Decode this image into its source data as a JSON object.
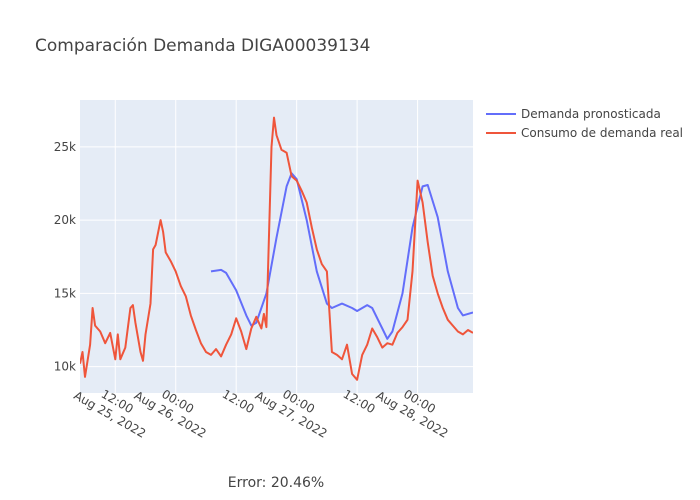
{
  "chart_data": {
    "type": "line",
    "title": "Comparación Demanda DIGA00039134",
    "annotation": "Error: 20.46%",
    "xlabel": "",
    "ylabel": "",
    "x_range": [
      "2022-08-25 05:00",
      "2022-08-28 11:00"
    ],
    "ylim": [
      8200,
      28200
    ],
    "y_ticks": [
      10000,
      15000,
      20000,
      25000
    ],
    "y_tick_labels": [
      "10k",
      "15k",
      "20k",
      "25k"
    ],
    "x_ticks": [
      {
        "t": "2022-08-25 12:00",
        "line1": "12:00",
        "line2": "Aug 25, 2022"
      },
      {
        "t": "2022-08-26 00:00",
        "line1": "00:00",
        "line2": "Aug 26, 2022"
      },
      {
        "t": "2022-08-26 12:00",
        "line1": "12:00",
        "line2": ""
      },
      {
        "t": "2022-08-27 00:00",
        "line1": "00:00",
        "line2": "Aug 27, 2022"
      },
      {
        "t": "2022-08-27 12:00",
        "line1": "12:00",
        "line2": ""
      },
      {
        "t": "2022-08-28 00:00",
        "line1": "00:00",
        "line2": "Aug 28, 2022"
      }
    ],
    "grid": true,
    "legend_position": "top-right",
    "series": [
      {
        "name": "Demanda pronosticada",
        "color": "#636efa",
        "points": [
          [
            "2022-08-26 07:00",
            16500
          ],
          [
            "2022-08-26 09:00",
            16600
          ],
          [
            "2022-08-26 10:00",
            16400
          ],
          [
            "2022-08-26 12:00",
            15200
          ],
          [
            "2022-08-26 14:00",
            13500
          ],
          [
            "2022-08-26 15:00",
            12800
          ],
          [
            "2022-08-26 16:00",
            13000
          ],
          [
            "2022-08-26 18:00",
            15000
          ],
          [
            "2022-08-26 20:00",
            18800
          ],
          [
            "2022-08-26 22:00",
            22300
          ],
          [
            "2022-08-26 23:00",
            23200
          ],
          [
            "2022-08-27 00:00",
            22800
          ],
          [
            "2022-08-27 02:00",
            20000
          ],
          [
            "2022-08-27 04:00",
            16500
          ],
          [
            "2022-08-27 06:00",
            14300
          ],
          [
            "2022-08-27 07:00",
            14000
          ],
          [
            "2022-08-27 09:00",
            14300
          ],
          [
            "2022-08-27 11:00",
            14000
          ],
          [
            "2022-08-27 12:00",
            13800
          ],
          [
            "2022-08-27 14:00",
            14200
          ],
          [
            "2022-08-27 15:00",
            14000
          ],
          [
            "2022-08-27 17:00",
            12600
          ],
          [
            "2022-08-27 18:00",
            11900
          ],
          [
            "2022-08-27 19:00",
            12400
          ],
          [
            "2022-08-27 21:00",
            15000
          ],
          [
            "2022-08-27 23:00",
            19500
          ],
          [
            "2022-08-28 01:00",
            22300
          ],
          [
            "2022-08-28 02:00",
            22400
          ],
          [
            "2022-08-28 04:00",
            20200
          ],
          [
            "2022-08-28 06:00",
            16500
          ],
          [
            "2022-08-28 08:00",
            14000
          ],
          [
            "2022-08-28 09:00",
            13500
          ],
          [
            "2022-08-28 11:00",
            13700
          ]
        ]
      },
      {
        "name": "Consumo de demanda real",
        "color": "#ef553b",
        "points": [
          [
            "2022-08-25 05:00",
            10200
          ],
          [
            "2022-08-25 05:30",
            11000
          ],
          [
            "2022-08-25 06:00",
            9300
          ],
          [
            "2022-08-25 07:00",
            11500
          ],
          [
            "2022-08-25 07:30",
            14000
          ],
          [
            "2022-08-25 08:00",
            12800
          ],
          [
            "2022-08-25 09:00",
            12400
          ],
          [
            "2022-08-25 10:00",
            11600
          ],
          [
            "2022-08-25 11:00",
            12300
          ],
          [
            "2022-08-25 12:00",
            10500
          ],
          [
            "2022-08-25 12:30",
            12200
          ],
          [
            "2022-08-25 13:00",
            10500
          ],
          [
            "2022-08-25 14:00",
            11300
          ],
          [
            "2022-08-25 15:00",
            14000
          ],
          [
            "2022-08-25 15:30",
            14200
          ],
          [
            "2022-08-25 16:00",
            13000
          ],
          [
            "2022-08-25 17:00",
            11000
          ],
          [
            "2022-08-25 17:30",
            10400
          ],
          [
            "2022-08-25 18:00",
            12200
          ],
          [
            "2022-08-25 19:00",
            14300
          ],
          [
            "2022-08-25 19:30",
            18000
          ],
          [
            "2022-08-25 20:00",
            18300
          ],
          [
            "2022-08-25 21:00",
            20000
          ],
          [
            "2022-08-25 21:30",
            19200
          ],
          [
            "2022-08-25 22:00",
            17800
          ],
          [
            "2022-08-25 23:00",
            17200
          ],
          [
            "2022-08-26 00:00",
            16500
          ],
          [
            "2022-08-26 01:00",
            15500
          ],
          [
            "2022-08-26 02:00",
            14800
          ],
          [
            "2022-08-26 03:00",
            13500
          ],
          [
            "2022-08-26 04:00",
            12500
          ],
          [
            "2022-08-26 05:00",
            11600
          ],
          [
            "2022-08-26 06:00",
            11000
          ],
          [
            "2022-08-26 07:00",
            10800
          ],
          [
            "2022-08-26 08:00",
            11200
          ],
          [
            "2022-08-26 09:00",
            10700
          ],
          [
            "2022-08-26 10:00",
            11500
          ],
          [
            "2022-08-26 11:00",
            12200
          ],
          [
            "2022-08-26 12:00",
            13300
          ],
          [
            "2022-08-26 13:00",
            12400
          ],
          [
            "2022-08-26 14:00",
            11200
          ],
          [
            "2022-08-26 15:00",
            12600
          ],
          [
            "2022-08-26 16:00",
            13400
          ],
          [
            "2022-08-26 17:00",
            12600
          ],
          [
            "2022-08-26 17:30",
            13600
          ],
          [
            "2022-08-26 18:00",
            12700
          ],
          [
            "2022-08-26 19:00",
            25000
          ],
          [
            "2022-08-26 19:30",
            27000
          ],
          [
            "2022-08-26 20:00",
            25800
          ],
          [
            "2022-08-26 21:00",
            24800
          ],
          [
            "2022-08-26 22:00",
            24600
          ],
          [
            "2022-08-26 23:00",
            23000
          ],
          [
            "2022-08-27 00:00",
            22700
          ],
          [
            "2022-08-27 01:00",
            22000
          ],
          [
            "2022-08-27 02:00",
            21200
          ],
          [
            "2022-08-27 03:00",
            19500
          ],
          [
            "2022-08-27 04:00",
            18000
          ],
          [
            "2022-08-27 05:00",
            17000
          ],
          [
            "2022-08-27 06:00",
            16500
          ],
          [
            "2022-08-27 07:00",
            11000
          ],
          [
            "2022-08-27 08:00",
            10800
          ],
          [
            "2022-08-27 09:00",
            10500
          ],
          [
            "2022-08-27 10:00",
            11500
          ],
          [
            "2022-08-27 11:00",
            9500
          ],
          [
            "2022-08-27 12:00",
            9100
          ],
          [
            "2022-08-27 13:00",
            10800
          ],
          [
            "2022-08-27 14:00",
            11500
          ],
          [
            "2022-08-27 15:00",
            12600
          ],
          [
            "2022-08-27 16:00",
            12000
          ],
          [
            "2022-08-27 17:00",
            11300
          ],
          [
            "2022-08-27 18:00",
            11600
          ],
          [
            "2022-08-27 19:00",
            11500
          ],
          [
            "2022-08-27 20:00",
            12300
          ],
          [
            "2022-08-27 21:00",
            12700
          ],
          [
            "2022-08-27 22:00",
            13200
          ],
          [
            "2022-08-27 23:00",
            16500
          ],
          [
            "2022-08-28 00:00",
            22700
          ],
          [
            "2022-08-28 01:00",
            21200
          ],
          [
            "2022-08-28 02:00",
            18500
          ],
          [
            "2022-08-28 03:00",
            16200
          ],
          [
            "2022-08-28 04:00",
            15000
          ],
          [
            "2022-08-28 05:00",
            14000
          ],
          [
            "2022-08-28 06:00",
            13200
          ],
          [
            "2022-08-28 07:00",
            12800
          ],
          [
            "2022-08-28 08:00",
            12400
          ],
          [
            "2022-08-28 09:00",
            12200
          ],
          [
            "2022-08-28 10:00",
            12500
          ],
          [
            "2022-08-28 11:00",
            12300
          ]
        ]
      }
    ]
  }
}
